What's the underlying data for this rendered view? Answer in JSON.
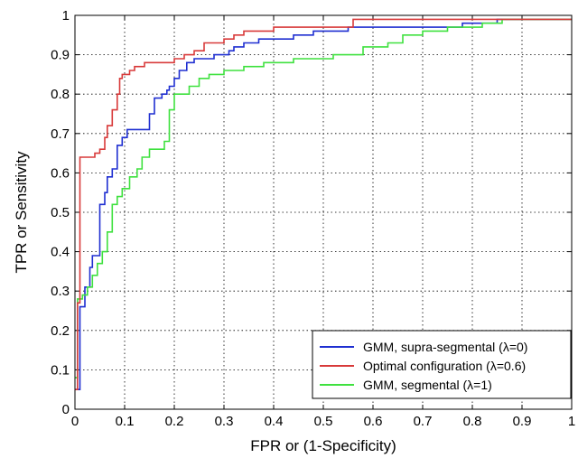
{
  "chart_data": {
    "type": "line",
    "title": "",
    "xlabel": "FPR or (1-Specificity)",
    "ylabel": "TPR or Sensitivity",
    "xlim": [
      0,
      1
    ],
    "ylim": [
      0,
      1
    ],
    "xticks": [
      "0",
      "0.1",
      "0.2",
      "0.3",
      "0.4",
      "0.5",
      "0.6",
      "0.7",
      "0.8",
      "0.9",
      "1"
    ],
    "yticks": [
      "0",
      "0.1",
      "0.2",
      "0.3",
      "0.4",
      "0.5",
      "0.6",
      "0.7",
      "0.8",
      "0.9",
      "1"
    ],
    "grid": true,
    "legend_position": "bottom-right",
    "series": [
      {
        "name": "GMM, supra-segmental (λ=0)",
        "color": "#1f2fd1",
        "points": [
          [
            0,
            0.05
          ],
          [
            0.01,
            0.05
          ],
          [
            0.01,
            0.26
          ],
          [
            0.02,
            0.26
          ],
          [
            0.02,
            0.31
          ],
          [
            0.03,
            0.31
          ],
          [
            0.03,
            0.36
          ],
          [
            0.035,
            0.36
          ],
          [
            0.035,
            0.39
          ],
          [
            0.05,
            0.39
          ],
          [
            0.05,
            0.52
          ],
          [
            0.06,
            0.52
          ],
          [
            0.06,
            0.55
          ],
          [
            0.065,
            0.55
          ],
          [
            0.065,
            0.59
          ],
          [
            0.075,
            0.59
          ],
          [
            0.075,
            0.61
          ],
          [
            0.085,
            0.61
          ],
          [
            0.085,
            0.67
          ],
          [
            0.095,
            0.67
          ],
          [
            0.095,
            0.69
          ],
          [
            0.105,
            0.69
          ],
          [
            0.105,
            0.71
          ],
          [
            0.15,
            0.71
          ],
          [
            0.15,
            0.75
          ],
          [
            0.16,
            0.75
          ],
          [
            0.16,
            0.79
          ],
          [
            0.175,
            0.79
          ],
          [
            0.175,
            0.8
          ],
          [
            0.185,
            0.8
          ],
          [
            0.185,
            0.81
          ],
          [
            0.19,
            0.81
          ],
          [
            0.19,
            0.82
          ],
          [
            0.2,
            0.82
          ],
          [
            0.2,
            0.84
          ],
          [
            0.21,
            0.84
          ],
          [
            0.21,
            0.86
          ],
          [
            0.225,
            0.86
          ],
          [
            0.225,
            0.88
          ],
          [
            0.24,
            0.88
          ],
          [
            0.24,
            0.89
          ],
          [
            0.28,
            0.89
          ],
          [
            0.28,
            0.9
          ],
          [
            0.31,
            0.9
          ],
          [
            0.31,
            0.91
          ],
          [
            0.32,
            0.91
          ],
          [
            0.32,
            0.92
          ],
          [
            0.34,
            0.92
          ],
          [
            0.34,
            0.93
          ],
          [
            0.37,
            0.93
          ],
          [
            0.37,
            0.94
          ],
          [
            0.44,
            0.94
          ],
          [
            0.44,
            0.95
          ],
          [
            0.48,
            0.95
          ],
          [
            0.48,
            0.96
          ],
          [
            0.55,
            0.96
          ],
          [
            0.55,
            0.97
          ],
          [
            0.78,
            0.97
          ],
          [
            0.78,
            0.98
          ],
          [
            0.85,
            0.98
          ],
          [
            0.85,
            0.99
          ],
          [
            1,
            0.99
          ]
        ]
      },
      {
        "name": "Optimal configuration (λ=0.6)",
        "color": "#d83a3a",
        "points": [
          [
            0,
            0.05
          ],
          [
            0.005,
            0.05
          ],
          [
            0.005,
            0.27
          ],
          [
            0.01,
            0.27
          ],
          [
            0.01,
            0.64
          ],
          [
            0.04,
            0.64
          ],
          [
            0.04,
            0.65
          ],
          [
            0.05,
            0.65
          ],
          [
            0.05,
            0.66
          ],
          [
            0.06,
            0.66
          ],
          [
            0.06,
            0.69
          ],
          [
            0.065,
            0.69
          ],
          [
            0.065,
            0.72
          ],
          [
            0.075,
            0.72
          ],
          [
            0.075,
            0.76
          ],
          [
            0.085,
            0.76
          ],
          [
            0.085,
            0.8
          ],
          [
            0.09,
            0.8
          ],
          [
            0.09,
            0.84
          ],
          [
            0.095,
            0.84
          ],
          [
            0.095,
            0.85
          ],
          [
            0.11,
            0.85
          ],
          [
            0.11,
            0.86
          ],
          [
            0.12,
            0.86
          ],
          [
            0.12,
            0.87
          ],
          [
            0.14,
            0.87
          ],
          [
            0.14,
            0.88
          ],
          [
            0.2,
            0.88
          ],
          [
            0.2,
            0.89
          ],
          [
            0.22,
            0.89
          ],
          [
            0.22,
            0.9
          ],
          [
            0.24,
            0.9
          ],
          [
            0.24,
            0.91
          ],
          [
            0.26,
            0.91
          ],
          [
            0.26,
            0.93
          ],
          [
            0.3,
            0.93
          ],
          [
            0.3,
            0.94
          ],
          [
            0.32,
            0.94
          ],
          [
            0.32,
            0.95
          ],
          [
            0.34,
            0.95
          ],
          [
            0.34,
            0.96
          ],
          [
            0.4,
            0.96
          ],
          [
            0.4,
            0.97
          ],
          [
            0.56,
            0.97
          ],
          [
            0.56,
            0.99
          ],
          [
            1,
            0.99
          ]
        ]
      },
      {
        "name": "GMM, segmental (λ=1)",
        "color": "#3fe13f",
        "points": [
          [
            0,
            0.08
          ],
          [
            0.005,
            0.08
          ],
          [
            0.005,
            0.28
          ],
          [
            0.015,
            0.28
          ],
          [
            0.015,
            0.29
          ],
          [
            0.025,
            0.29
          ],
          [
            0.025,
            0.31
          ],
          [
            0.035,
            0.31
          ],
          [
            0.035,
            0.34
          ],
          [
            0.045,
            0.34
          ],
          [
            0.045,
            0.37
          ],
          [
            0.055,
            0.37
          ],
          [
            0.055,
            0.4
          ],
          [
            0.065,
            0.4
          ],
          [
            0.065,
            0.45
          ],
          [
            0.075,
            0.45
          ],
          [
            0.075,
            0.52
          ],
          [
            0.085,
            0.52
          ],
          [
            0.085,
            0.54
          ],
          [
            0.095,
            0.54
          ],
          [
            0.095,
            0.56
          ],
          [
            0.11,
            0.56
          ],
          [
            0.11,
            0.59
          ],
          [
            0.125,
            0.59
          ],
          [
            0.125,
            0.61
          ],
          [
            0.135,
            0.61
          ],
          [
            0.135,
            0.64
          ],
          [
            0.15,
            0.64
          ],
          [
            0.15,
            0.66
          ],
          [
            0.18,
            0.66
          ],
          [
            0.18,
            0.68
          ],
          [
            0.19,
            0.68
          ],
          [
            0.19,
            0.76
          ],
          [
            0.2,
            0.76
          ],
          [
            0.2,
            0.8
          ],
          [
            0.23,
            0.8
          ],
          [
            0.23,
            0.82
          ],
          [
            0.25,
            0.82
          ],
          [
            0.25,
            0.84
          ],
          [
            0.27,
            0.84
          ],
          [
            0.27,
            0.85
          ],
          [
            0.3,
            0.85
          ],
          [
            0.3,
            0.86
          ],
          [
            0.34,
            0.86
          ],
          [
            0.34,
            0.87
          ],
          [
            0.38,
            0.87
          ],
          [
            0.38,
            0.88
          ],
          [
            0.44,
            0.88
          ],
          [
            0.44,
            0.89
          ],
          [
            0.52,
            0.89
          ],
          [
            0.52,
            0.9
          ],
          [
            0.58,
            0.9
          ],
          [
            0.58,
            0.92
          ],
          [
            0.63,
            0.92
          ],
          [
            0.63,
            0.93
          ],
          [
            0.66,
            0.93
          ],
          [
            0.66,
            0.95
          ],
          [
            0.7,
            0.95
          ],
          [
            0.7,
            0.96
          ],
          [
            0.75,
            0.96
          ],
          [
            0.75,
            0.97
          ],
          [
            0.82,
            0.97
          ],
          [
            0.82,
            0.98
          ],
          [
            0.86,
            0.98
          ],
          [
            0.86,
            0.99
          ],
          [
            1,
            0.99
          ]
        ]
      }
    ]
  }
}
